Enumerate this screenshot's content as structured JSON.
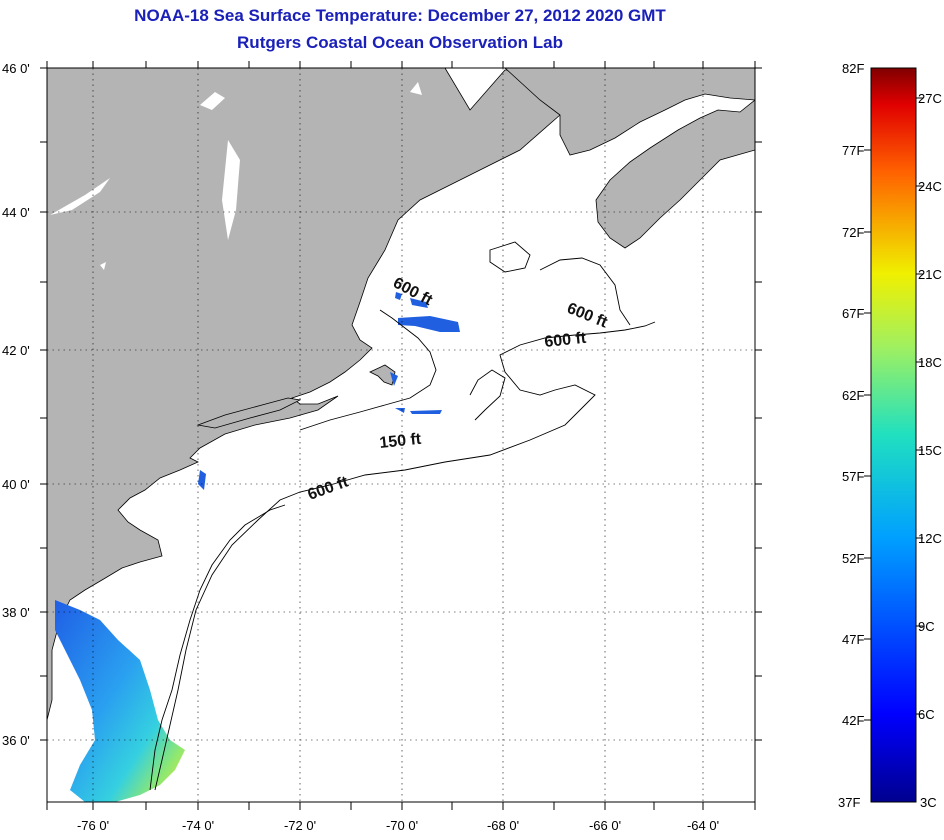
{
  "header": {
    "title": "NOAA-18 Sea Surface Temperature:  December 27, 2012 2020 GMT",
    "subtitle": "Rutgers Coastal Ocean Observation Lab"
  },
  "map": {
    "lat_labels": [
      "46 0'",
      "44 0'",
      "42 0'",
      "40 0'",
      "38 0'",
      "36 0'"
    ],
    "lon_labels": [
      "-76 0'",
      "-74 0'",
      "-72 0'",
      "-70 0'",
      "-68 0'",
      "-66 0'",
      "-64 0'"
    ],
    "contour_labels": [
      "600 ft",
      "600 ft",
      "600 ft",
      "150 ft",
      "600 ft"
    ],
    "colors": {
      "land": "#b4b4b4",
      "ocean": "#ffffff",
      "title": "#1a20b8"
    }
  },
  "colorbar": {
    "fahrenheit_labels": [
      "82F",
      "77F",
      "72F",
      "67F",
      "62F",
      "57F",
      "52F",
      "47F",
      "42F",
      "37F"
    ],
    "celsius_labels": [
      "27C",
      "24C",
      "21C",
      "18C",
      "15C",
      "12C",
      "9C",
      "6C",
      "3C"
    ],
    "colormap": "jet"
  }
}
